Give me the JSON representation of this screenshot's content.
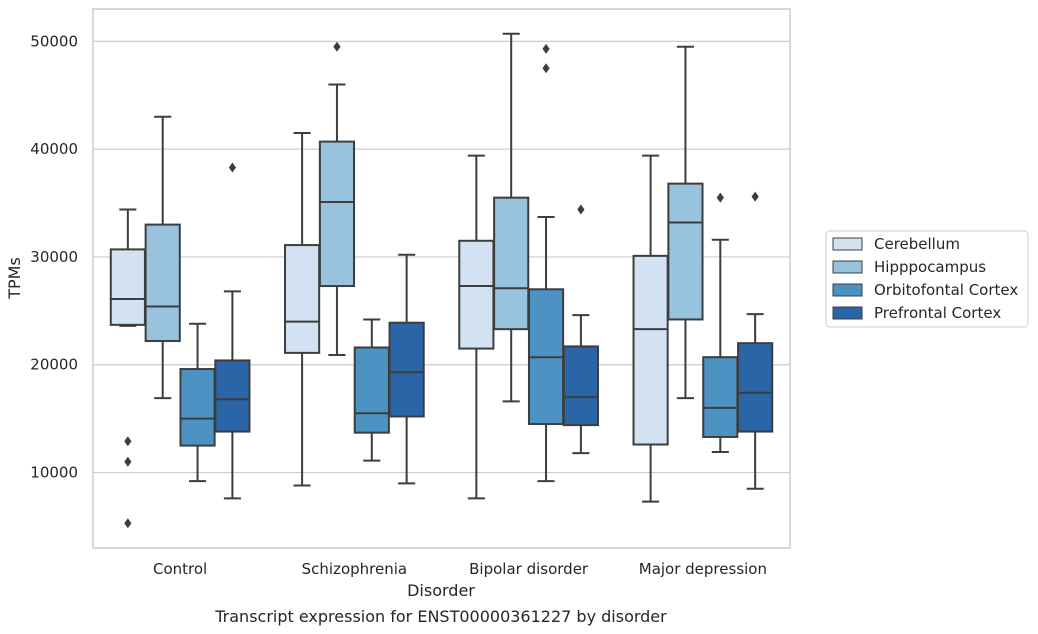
{
  "chart_data": {
    "type": "box",
    "categories": [
      "Control",
      "Schizophrenia",
      "Bipolar disorder",
      "Major depression"
    ],
    "xlabel": "Disorder",
    "ylabel": "TPMs",
    "caption": "Transcript expression for ENST00000361227 by disorder",
    "ylim": [
      3000,
      53000
    ],
    "yticks": [
      10000,
      20000,
      30000,
      40000,
      50000
    ],
    "ytick_labels": [
      "10000",
      "20000",
      "30000",
      "40000",
      "50000"
    ],
    "grid": "horizontal",
    "legend_position": "center-right",
    "colors": [
      "#d2e2f2",
      "#97c3de",
      "#4c92c3",
      "#2a65a7"
    ],
    "edge_color": "#3d3d3d",
    "series": [
      {
        "name": "Cerebellum",
        "boxes": [
          {
            "whislo": 23600,
            "q1": 23700,
            "med": 26100,
            "q3": 30700,
            "whishi": 34400,
            "fliers": [
              12900,
              11000,
              5300
            ]
          },
          {
            "whislo": 8800,
            "q1": 21100,
            "med": 24000,
            "q3": 31100,
            "whishi": 41500,
            "fliers": []
          },
          {
            "whislo": 7600,
            "q1": 21500,
            "med": 27300,
            "q3": 31500,
            "whishi": 39400,
            "fliers": []
          },
          {
            "whislo": 7300,
            "q1": 12600,
            "med": 23300,
            "q3": 30100,
            "whishi": 39400,
            "fliers": []
          }
        ]
      },
      {
        "name": "Hipppocampus",
        "boxes": [
          {
            "whislo": 16900,
            "q1": 22200,
            "med": 25400,
            "q3": 33000,
            "whishi": 43000,
            "fliers": []
          },
          {
            "whislo": 20900,
            "q1": 27300,
            "med": 35100,
            "q3": 40700,
            "whishi": 46000,
            "fliers": [
              49500
            ]
          },
          {
            "whislo": 16600,
            "q1": 23300,
            "med": 27100,
            "q3": 35500,
            "whishi": 50700,
            "fliers": []
          },
          {
            "whislo": 16900,
            "q1": 24200,
            "med": 33200,
            "q3": 36800,
            "whishi": 49500,
            "fliers": []
          }
        ]
      },
      {
        "name": "Orbitofontal Cortex",
        "boxes": [
          {
            "whislo": 9200,
            "q1": 12500,
            "med": 15000,
            "q3": 19600,
            "whishi": 23800,
            "fliers": []
          },
          {
            "whislo": 11100,
            "q1": 13700,
            "med": 15500,
            "q3": 21600,
            "whishi": 24200,
            "fliers": []
          },
          {
            "whislo": 9200,
            "q1": 14500,
            "med": 20700,
            "q3": 27000,
            "whishi": 33700,
            "fliers": [
              49300,
              47500
            ]
          },
          {
            "whislo": 11900,
            "q1": 13300,
            "med": 16000,
            "q3": 20700,
            "whishi": 31600,
            "fliers": [
              35500
            ]
          }
        ]
      },
      {
        "name": "Prefrontal Cortex",
        "boxes": [
          {
            "whislo": 7600,
            "q1": 13800,
            "med": 16800,
            "q3": 20400,
            "whishi": 26800,
            "fliers": [
              38300
            ]
          },
          {
            "whislo": 9000,
            "q1": 15200,
            "med": 19300,
            "q3": 23900,
            "whishi": 30200,
            "fliers": []
          },
          {
            "whislo": 11800,
            "q1": 14400,
            "med": 17000,
            "q3": 21700,
            "whishi": 24600,
            "fliers": [
              34400
            ]
          },
          {
            "whislo": 8500,
            "q1": 13800,
            "med": 17400,
            "q3": 22000,
            "whishi": 24700,
            "fliers": [
              35600
            ]
          }
        ]
      }
    ]
  }
}
